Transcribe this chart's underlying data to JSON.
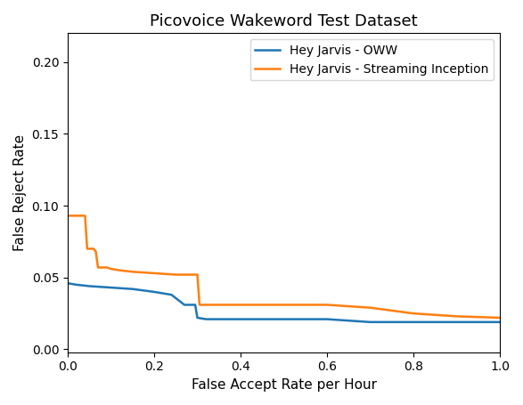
{
  "title": "Picovoice Wakeword Test Dataset",
  "xlabel": "False Accept Rate per Hour",
  "ylabel": "False Reject Rate",
  "xlim": [
    0.0,
    1.0
  ],
  "ylim": [
    -0.002,
    0.22
  ],
  "yticks": [
    0.0,
    0.05,
    0.1,
    0.15,
    0.2
  ],
  "xticks": [
    0.0,
    0.2,
    0.4,
    0.6,
    0.8,
    1.0
  ],
  "oww_color": "#1f77b4",
  "streaming_color": "#ff7f0e",
  "oww_label": "Hey Jarvis - OWW",
  "streaming_label": "Hey Jarvis - Streaming Inception",
  "oww_x": [
    0.0,
    0.02,
    0.05,
    0.1,
    0.15,
    0.2,
    0.24,
    0.27,
    0.295,
    0.3,
    0.32,
    0.35,
    0.4,
    0.5,
    0.6,
    0.65,
    0.7,
    0.75,
    0.8,
    0.9,
    1.0
  ],
  "oww_y": [
    0.046,
    0.045,
    0.044,
    0.043,
    0.042,
    0.04,
    0.038,
    0.031,
    0.031,
    0.022,
    0.021,
    0.021,
    0.021,
    0.021,
    0.021,
    0.02,
    0.019,
    0.019,
    0.019,
    0.019,
    0.019
  ],
  "streaming_x": [
    0.0,
    0.005,
    0.04,
    0.045,
    0.06,
    0.065,
    0.07,
    0.09,
    0.1,
    0.12,
    0.15,
    0.2,
    0.25,
    0.3,
    0.305,
    0.32,
    0.35,
    0.4,
    0.5,
    0.6,
    0.65,
    0.7,
    0.75,
    0.8,
    0.85,
    0.9,
    1.0
  ],
  "streaming_y": [
    0.093,
    0.093,
    0.093,
    0.07,
    0.07,
    0.068,
    0.057,
    0.057,
    0.056,
    0.055,
    0.054,
    0.053,
    0.052,
    0.052,
    0.031,
    0.031,
    0.031,
    0.031,
    0.031,
    0.031,
    0.03,
    0.029,
    0.027,
    0.025,
    0.024,
    0.023,
    0.022
  ],
  "legend_loc": "upper right",
  "title_fontsize": 13,
  "label_fontsize": 11,
  "tick_fontsize": 10,
  "legend_fontsize": 10,
  "linewidth": 1.8
}
